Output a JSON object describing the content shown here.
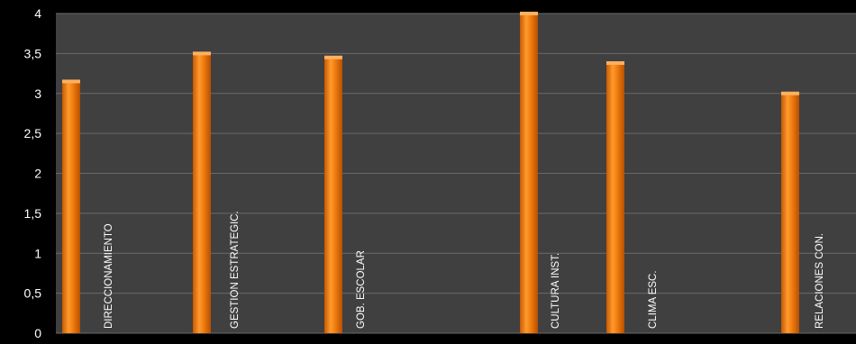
{
  "chart_data": {
    "type": "bar",
    "title": "",
    "xlabel": "",
    "ylabel": "",
    "ylim": [
      0,
      4
    ],
    "y_ticks": [
      "0",
      "0,5",
      "1",
      "1,5",
      "2",
      "2,5",
      "3",
      "3,5",
      "4"
    ],
    "grid": true,
    "legend": "none",
    "colors": {
      "plot_bg": "#404040",
      "page_bg": "#000000",
      "bar": "#f07d10",
      "text": "#ffffff"
    },
    "series": [
      {
        "values": [
          3.15,
          3.5,
          3.45,
          4.0,
          3.38,
          3.0
        ]
      }
    ],
    "categories": [
      "DIRECCIONAMIENTO",
      "GESTION ESTRATEGIC.",
      "GOB. ESCOLAR",
      "CULTURA INST.",
      "CLIMA ESC.",
      "RELACIONES CON."
    ]
  }
}
